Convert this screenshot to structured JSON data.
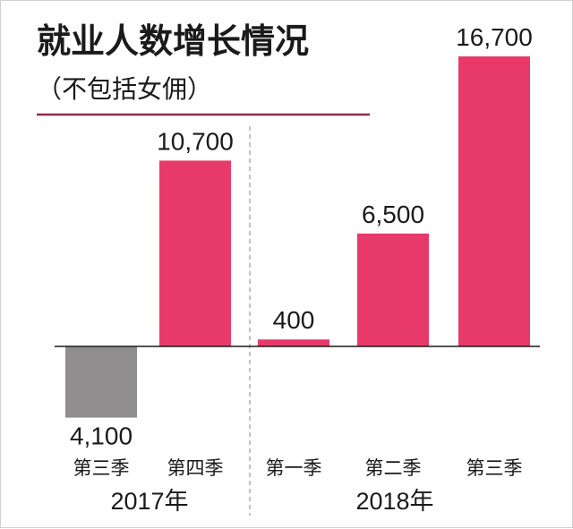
{
  "chart_data": {
    "type": "bar",
    "title": "就业人数增长情况",
    "subtitle": "（不包括女佣）",
    "categories": [
      "第三季",
      "第四季",
      "第一季",
      "第二季",
      "第三季"
    ],
    "groups": [
      {
        "label": "2017年",
        "categories": [
          "第三季",
          "第四季"
        ]
      },
      {
        "label": "2018年",
        "categories": [
          "第一季",
          "第二季",
          "第三季"
        ]
      }
    ],
    "values": [
      -4100,
      10700,
      400,
      6500,
      16700
    ],
    "value_labels": [
      "4,100",
      "10,700",
      "400",
      "6,500",
      "16,700"
    ],
    "ylim": [
      -4100,
      16700
    ],
    "xlabel": "",
    "ylabel": "",
    "grid": false,
    "colors": {
      "positive": "#E83A6A",
      "negative": "#8F8D8E",
      "rule": "#8B2C4B",
      "baseline": "#1a1a1a",
      "divider": "#9a9a9a"
    }
  }
}
